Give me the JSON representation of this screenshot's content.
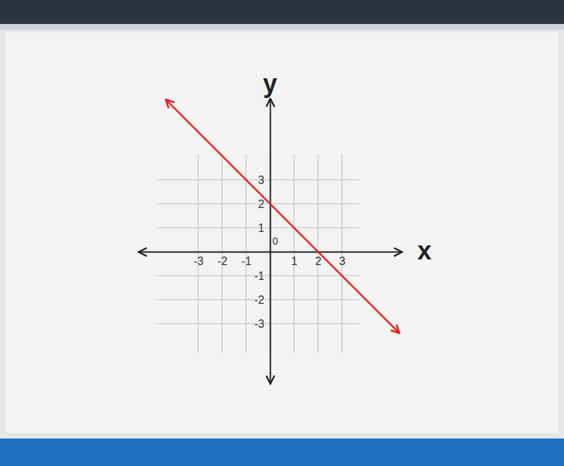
{
  "chart_data": {
    "type": "line",
    "xlabel": "x",
    "ylabel": "y",
    "series": [
      {
        "x": [
          -4.35,
          5.4
        ],
        "values": [
          6.35,
          -3.4
        ],
        "color": "#e2231a",
        "marker": "arrow"
      }
    ],
    "xlim": [
      -5.5,
      5.5
    ],
    "ylim": [
      -5.5,
      6.4
    ],
    "xticks": [
      -3,
      -2,
      -1,
      0,
      1,
      2,
      3
    ],
    "yticks": [
      -3,
      -2,
      -1,
      1,
      2,
      3
    ],
    "grid": true
  }
}
